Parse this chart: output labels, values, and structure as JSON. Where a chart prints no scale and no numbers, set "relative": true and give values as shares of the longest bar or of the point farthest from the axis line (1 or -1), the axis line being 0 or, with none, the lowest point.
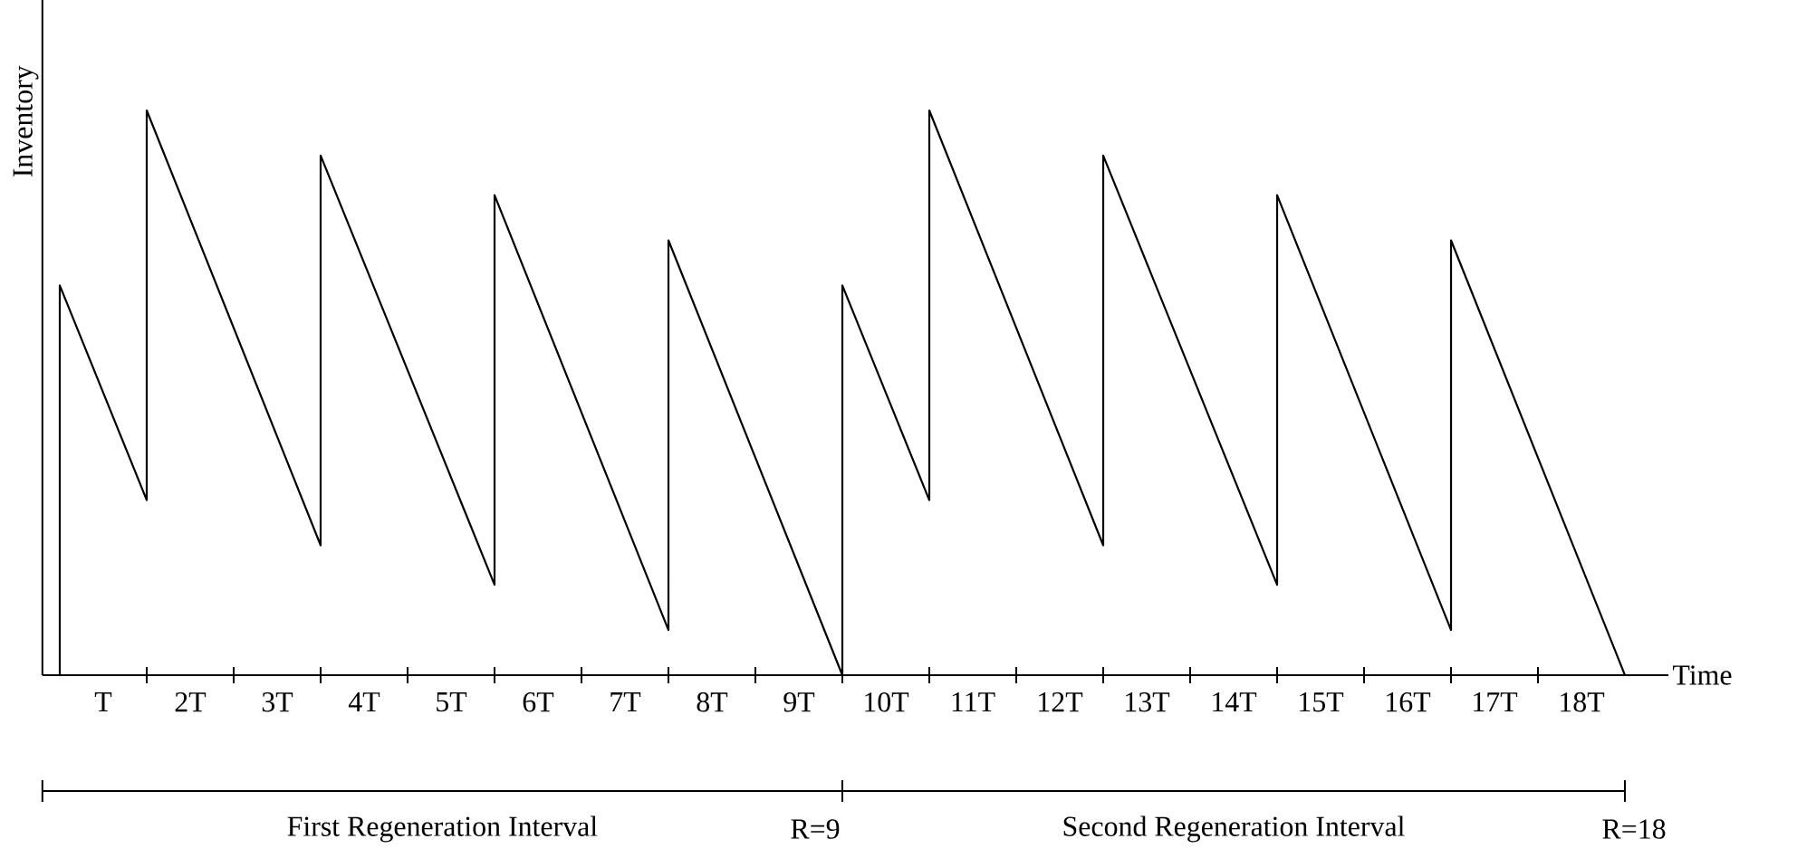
{
  "chart_data": {
    "type": "line",
    "relative": true,
    "xlabel": "Time",
    "ylabel": "Inventory",
    "xlim": [
      -0.2,
      18.5
    ],
    "xticks": [
      {
        "value": 0.5,
        "label": "T"
      },
      {
        "value": 1.5,
        "label": "2T"
      },
      {
        "value": 2.5,
        "label": "3T"
      },
      {
        "value": 3.5,
        "label": "4T"
      },
      {
        "value": 4.5,
        "label": "5T"
      },
      {
        "value": 5.5,
        "label": "6T"
      },
      {
        "value": 6.5,
        "label": "7T"
      },
      {
        "value": 7.5,
        "label": "8T"
      },
      {
        "value": 8.5,
        "label": "9T"
      },
      {
        "value": 9.5,
        "label": "10T"
      },
      {
        "value": 10.5,
        "label": "11T"
      },
      {
        "value": 11.5,
        "label": "12T"
      },
      {
        "value": 12.5,
        "label": "13T"
      },
      {
        "value": 13.5,
        "label": "14T"
      },
      {
        "value": 14.5,
        "label": "15T"
      },
      {
        "value": 15.5,
        "label": "16T"
      },
      {
        "value": 16.5,
        "label": "17T"
      },
      {
        "value": 17.5,
        "label": "18T"
      },
      {
        "value": 1,
        "label": null
      },
      {
        "value": 2,
        "label": null
      },
      {
        "value": 3,
        "label": null
      },
      {
        "value": 4,
        "label": null
      },
      {
        "value": 5,
        "label": null
      },
      {
        "value": 6,
        "label": null
      },
      {
        "value": 7,
        "label": null
      },
      {
        "value": 8,
        "label": null
      },
      {
        "value": 9,
        "label": null
      },
      {
        "value": 10,
        "label": null
      },
      {
        "value": 11,
        "label": null
      },
      {
        "value": 12,
        "label": null
      },
      {
        "value": 13,
        "label": null
      },
      {
        "value": 14,
        "label": null
      },
      {
        "value": 15,
        "label": null
      },
      {
        "value": 16,
        "label": null
      },
      {
        "value": 17,
        "label": null
      }
    ],
    "series": [
      {
        "color": "#000000",
        "x": [
          0,
          0,
          1,
          1,
          3,
          3,
          5,
          5,
          7,
          7,
          9,
          9,
          10,
          10,
          12,
          12,
          14,
          14,
          16,
          16,
          18
        ],
        "values": [
          0,
          0.69,
          0.31,
          1,
          0.23,
          0.92,
          0.16,
          0.85,
          0.08,
          0.77,
          0,
          0.69,
          0.31,
          1,
          0.23,
          0.92,
          0.16,
          0.85,
          0.08,
          0.77,
          0
        ]
      }
    ],
    "annotations": [
      "First Regeneration Interval",
      "R=9",
      "Second Regeneration Interval",
      "R=18"
    ]
  }
}
